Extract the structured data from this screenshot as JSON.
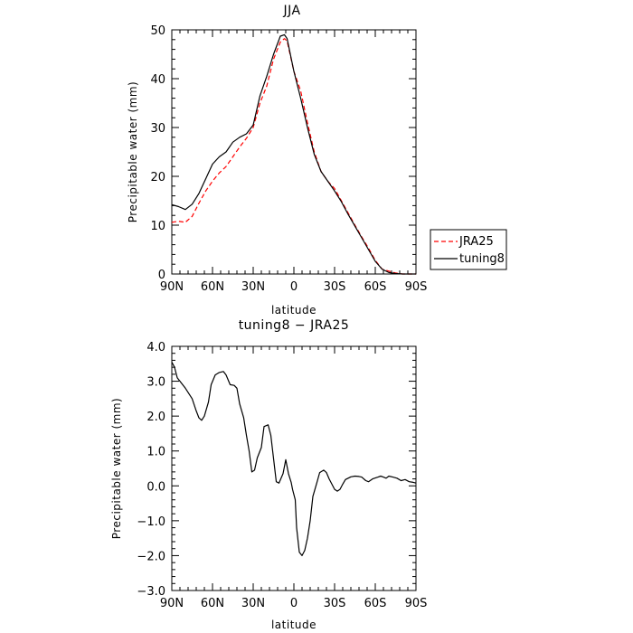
{
  "chart_data": [
    {
      "type": "line",
      "title": "JJA",
      "xlabel": "latitude",
      "ylabel": "Precipitable water  (mm)",
      "xlim": [
        90,
        -90
      ],
      "ylim": [
        0,
        50
      ],
      "xticks": [
        90,
        60,
        30,
        0,
        -30,
        -60,
        -90
      ],
      "xtick_labels": [
        "90N",
        "60N",
        "30N",
        "0",
        "30S",
        "60S",
        "90S"
      ],
      "yticks": [
        0,
        10,
        20,
        30,
        40,
        50
      ],
      "ytick_labels": [
        "0",
        "10",
        "20",
        "30",
        "40",
        "50"
      ],
      "grid": false,
      "legend": "outside-right",
      "series": [
        {
          "name": "JRA25",
          "color": "#ff0000",
          "style": "dashed",
          "x": [
            90,
            85,
            80,
            75,
            70,
            65,
            60,
            55,
            50,
            45,
            40,
            35,
            30,
            25,
            20,
            15,
            10,
            7,
            5,
            0,
            -5,
            -10,
            -15,
            -20,
            -25,
            -30,
            -35,
            -40,
            -45,
            -50,
            -55,
            -60,
            -65,
            -70,
            -75,
            -80,
            -85,
            -90
          ],
          "values": [
            10.6,
            10.8,
            10.6,
            11.8,
            14.5,
            17.0,
            19.0,
            20.7,
            22.0,
            24.0,
            26.0,
            27.8,
            30.0,
            35.0,
            38.5,
            44.0,
            47.5,
            48.2,
            47.7,
            41.5,
            37.5,
            31.0,
            25.0,
            21.0,
            19.0,
            17.5,
            15.0,
            12.5,
            10.0,
            7.6,
            5.3,
            2.8,
            1.0,
            0.6,
            0.2,
            0.0,
            0.0,
            0.0
          ]
        },
        {
          "name": "tuning8",
          "color": "#000000",
          "style": "solid",
          "x": [
            90,
            85,
            80,
            75,
            70,
            65,
            60,
            55,
            50,
            45,
            40,
            35,
            30,
            25,
            20,
            15,
            10,
            7,
            5,
            0,
            -5,
            -10,
            -15,
            -20,
            -25,
            -30,
            -35,
            -40,
            -45,
            -50,
            -55,
            -60,
            -65,
            -70,
            -75,
            -80,
            -85,
            -90
          ],
          "values": [
            14.2,
            13.8,
            13.2,
            14.3,
            16.5,
            19.5,
            22.5,
            24.0,
            25.0,
            27.0,
            28.0,
            28.7,
            30.5,
            36.5,
            40.5,
            45.0,
            48.7,
            49.0,
            48.2,
            41.5,
            36.0,
            30.0,
            24.5,
            21.0,
            19.0,
            17.0,
            14.8,
            12.2,
            9.8,
            7.4,
            5.0,
            2.6,
            1.0,
            0.3,
            0.1,
            0.0,
            0.0,
            0.0
          ]
        }
      ]
    },
    {
      "type": "line",
      "title": "tuning8 − JRA25",
      "xlabel": "latitude",
      "ylabel": "Precipitable water  (mm)",
      "xlim": [
        90,
        -90
      ],
      "ylim": [
        -3.0,
        4.0
      ],
      "xticks": [
        90,
        60,
        30,
        0,
        -30,
        -60,
        -90
      ],
      "xtick_labels": [
        "90N",
        "60N",
        "30N",
        "0",
        "30S",
        "60S",
        "90S"
      ],
      "yticks": [
        -3.0,
        -2.0,
        -1.0,
        0.0,
        1.0,
        2.0,
        3.0,
        4.0
      ],
      "ytick_labels": [
        "−3.0",
        "−2.0",
        "−1.0",
        "0.0",
        "1.0",
        "2.0",
        "3.0",
        "4.0"
      ],
      "grid": false,
      "series": [
        {
          "color": "#000000",
          "style": "solid",
          "x": [
            90,
            88,
            86,
            80,
            75,
            72,
            70,
            68,
            66,
            63,
            61,
            58,
            55,
            52,
            50,
            47,
            44,
            42,
            40,
            37,
            35,
            33,
            31,
            29,
            27,
            24,
            22,
            19,
            17,
            13,
            11,
            8,
            6,
            4,
            2,
            1,
            -1,
            -2,
            -4,
            -6,
            -8,
            -10,
            -12,
            -14,
            -17,
            -19,
            -22,
            -24,
            -26,
            -28,
            -30,
            -32,
            -34,
            -36,
            -38,
            -40,
            -42,
            -45,
            -48,
            -50,
            -53,
            -55,
            -58,
            -62,
            -64,
            -66,
            -68,
            -70,
            -73,
            -76,
            -79,
            -82,
            -85,
            -88,
            -90
          ],
          "values": [
            3.55,
            3.4,
            3.1,
            2.8,
            2.5,
            2.15,
            1.95,
            1.88,
            2.0,
            2.4,
            2.9,
            3.18,
            3.25,
            3.28,
            3.18,
            2.9,
            2.88,
            2.8,
            2.35,
            1.95,
            1.45,
            1.0,
            0.4,
            0.45,
            0.8,
            1.1,
            1.7,
            1.75,
            1.45,
            0.12,
            0.08,
            0.35,
            0.75,
            0.35,
            0.1,
            -0.1,
            -0.4,
            -1.2,
            -1.9,
            -2.0,
            -1.85,
            -1.5,
            -1.0,
            -0.3,
            0.1,
            0.38,
            0.45,
            0.38,
            0.2,
            0.05,
            -0.1,
            -0.15,
            -0.1,
            0.05,
            0.18,
            0.22,
            0.26,
            0.28,
            0.27,
            0.25,
            0.15,
            0.12,
            0.2,
            0.25,
            0.28,
            0.25,
            0.22,
            0.28,
            0.25,
            0.22,
            0.15,
            0.18,
            0.12,
            0.1,
            0.08
          ]
        }
      ]
    }
  ]
}
